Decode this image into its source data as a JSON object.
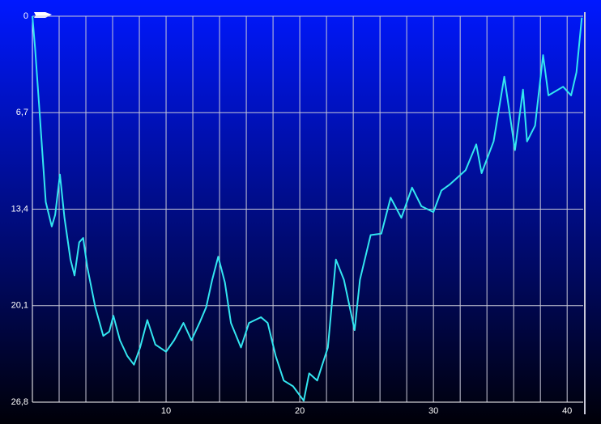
{
  "chart_data": {
    "type": "line",
    "x": [
      0,
      0.2,
      0.5,
      1.0,
      1.45,
      1.7,
      2.06,
      2.4,
      2.85,
      3.15,
      3.5,
      3.8,
      4.1,
      4.7,
      5.3,
      5.75,
      6.06,
      6.55,
      7.1,
      7.6,
      8.06,
      8.6,
      9.2,
      10.0,
      10.6,
      11.3,
      11.9,
      12.5,
      13.0,
      13.45,
      13.9,
      14.4,
      14.85,
      15.6,
      16.2,
      17.1,
      17.6,
      18.2,
      18.8,
      19.5,
      20.3,
      20.7,
      21.3,
      22.1,
      22.7,
      23.3,
      24.1,
      24.5,
      25.3,
      26.1,
      26.8,
      27.6,
      28.4,
      29.1,
      30.0,
      30.6,
      31.2,
      32.4,
      33.2,
      33.6,
      34.5,
      35.3,
      36.1,
      36.7,
      37.0,
      37.6,
      38.2,
      38.6,
      39.7,
      40.3,
      40.7,
      41.1
    ],
    "series": [
      {
        "color": "#33e6f0",
        "values": [
          0,
          2.2,
          6.2,
          12.9,
          14.6,
          13.8,
          11.0,
          14.0,
          16.9,
          18.0,
          15.7,
          15.4,
          17.4,
          20.2,
          22.2,
          21.9,
          20.8,
          22.5,
          23.6,
          24.2,
          23.0,
          21.1,
          22.8,
          23.3,
          22.5,
          21.3,
          22.5,
          21.3,
          20.2,
          18.3,
          16.7,
          18.5,
          21.3,
          23.0,
          21.3,
          20.9,
          21.3,
          23.6,
          25.3,
          25.7,
          26.7,
          24.8,
          25.3,
          23.0,
          16.9,
          18.3,
          21.8,
          18.3,
          15.2,
          15.1,
          12.6,
          14.0,
          11.9,
          13.2,
          13.6,
          12.1,
          11.7,
          10.7,
          8.9,
          10.9,
          8.7,
          4.2,
          9.3,
          5.1,
          8.7,
          7.6,
          2.7,
          5.5,
          4.9,
          5.5,
          3.9,
          0.1
        ]
      }
    ],
    "xlim": [
      0,
      41.2
    ],
    "ylim": [
      26.8,
      0
    ],
    "xticks": [
      10,
      20,
      30,
      40
    ],
    "x_minor_ticks": [
      2,
      4,
      6,
      8,
      10,
      12,
      14,
      16,
      18,
      20,
      22,
      24,
      26,
      28,
      30,
      32,
      34,
      36,
      38,
      40
    ],
    "yticks": [
      0,
      {
        "value": 6.7,
        "label": "6,7"
      },
      {
        "value": 13.4,
        "label": "13,4"
      },
      {
        "value": 20.1,
        "label": "20,1"
      },
      {
        "value": 26.8,
        "label": "26,8"
      }
    ],
    "grid": true
  }
}
